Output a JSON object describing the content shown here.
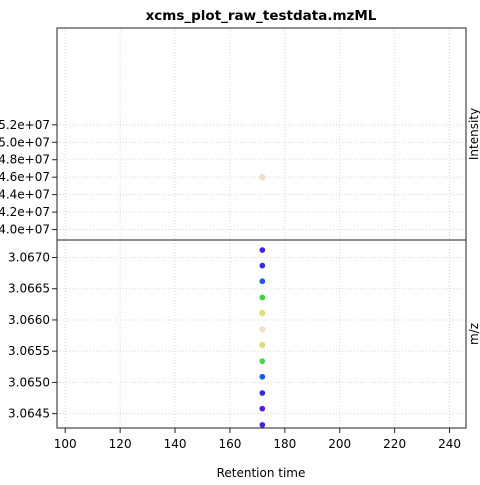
{
  "chart_data": {
    "type": "scatter",
    "title": "xcms_plot_raw_testdata.mzML",
    "xlabel": "Retention time",
    "xlim": [
      97,
      246
    ],
    "x_ticks": [
      100,
      120,
      140,
      160,
      180,
      200,
      220,
      240
    ],
    "x_tick_labels": [
      "100",
      "120",
      "140",
      "160",
      "180",
      "200",
      "220",
      "240"
    ],
    "grid": true,
    "panels": [
      {
        "name": "intensity",
        "ylabel": "Intensity",
        "ylim": [
          38800000.0,
          63100000.0
        ],
        "y_ticks": [
          40000000.0,
          42000000.0,
          44000000.0,
          46000000.0,
          48000000.0,
          50000000.0,
          52000000.0
        ],
        "y_tick_labels": [
          "4.0e+07",
          "4.2e+07",
          "4.4e+07",
          "4.6e+07",
          "4.8e+07",
          "5.0e+07",
          "5.2e+07"
        ],
        "points": [
          {
            "x": 171.8,
            "y": 46000000.0,
            "color": "#f2dfb8"
          }
        ]
      },
      {
        "name": "mz",
        "ylabel": "m/z",
        "ylim": [
          3.06427,
          3.06728
        ],
        "y_ticks": [
          3.0645,
          3.065,
          3.0655,
          3.066,
          3.0665,
          3.067
        ],
        "y_tick_labels": [
          "3.0645",
          "3.0650",
          "3.0655",
          "3.0660",
          "3.0665",
          "3.0670"
        ],
        "points": [
          {
            "x": 171.8,
            "y": 3.06712,
            "color": "#4a1ee8"
          },
          {
            "x": 171.8,
            "y": 3.06687,
            "color": "#2a2ee8"
          },
          {
            "x": 171.8,
            "y": 3.06662,
            "color": "#1a5ae8"
          },
          {
            "x": 171.8,
            "y": 3.06636,
            "color": "#3ed63e"
          },
          {
            "x": 171.8,
            "y": 3.06611,
            "color": "#e8dc6a"
          },
          {
            "x": 171.8,
            "y": 3.06585,
            "color": "#f0e2c2"
          },
          {
            "x": 171.8,
            "y": 3.0656,
            "color": "#e8d870"
          },
          {
            "x": 171.8,
            "y": 3.06534,
            "color": "#46d646"
          },
          {
            "x": 171.8,
            "y": 3.06509,
            "color": "#1a5ae8"
          },
          {
            "x": 171.8,
            "y": 3.06483,
            "color": "#2a2ee8"
          },
          {
            "x": 171.8,
            "y": 3.06458,
            "color": "#5a18e0"
          },
          {
            "x": 171.8,
            "y": 3.06432,
            "color": "#4a1ee8"
          }
        ]
      }
    ]
  }
}
